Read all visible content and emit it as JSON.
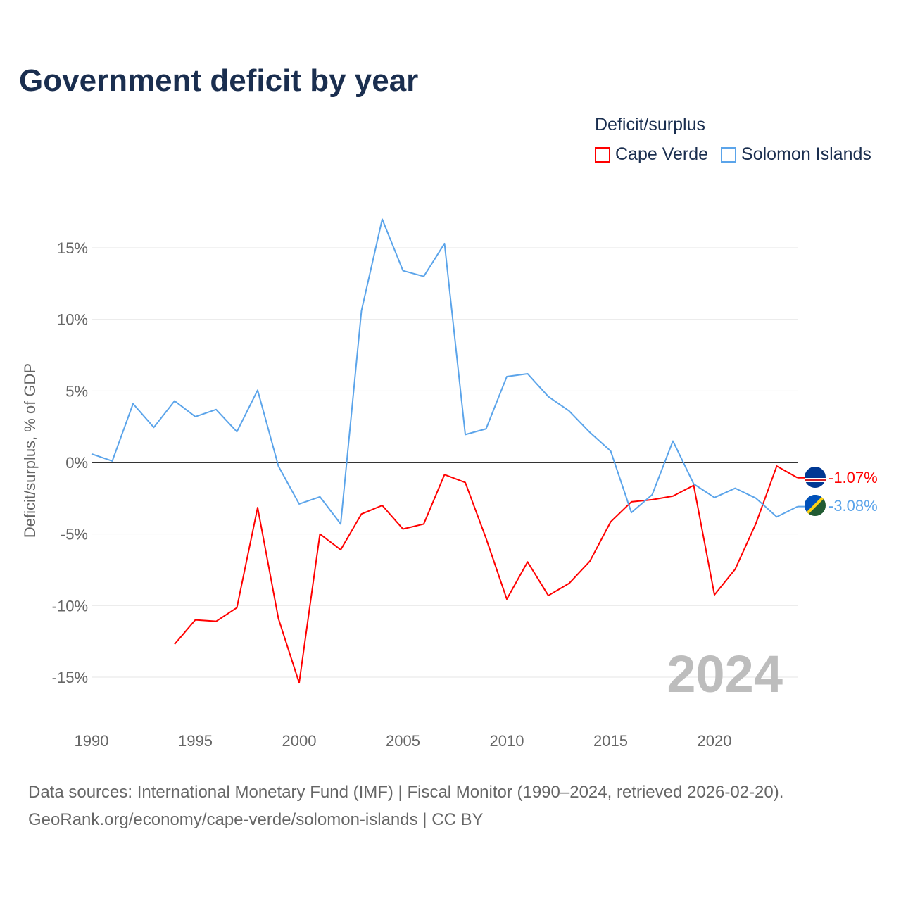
{
  "title": "Government deficit by year",
  "legend": {
    "title": "Deficit/surplus",
    "items": [
      {
        "label": "Cape Verde",
        "color": "#ff0000"
      },
      {
        "label": "Solomon Islands",
        "color": "#5ba4ea"
      }
    ]
  },
  "source": {
    "line1": "Data sources: International Monetary Fund (IMF) | Fiscal Monitor (1990–2024, retrieved 2026-02-20).",
    "line2": "GeoRank.org/economy/cape-verde/solomon-islands | CC BY"
  },
  "chart_data": {
    "type": "line",
    "title": "Government deficit by year",
    "xlabel": "",
    "ylabel": "Deficit/surplus, % of GDP",
    "xlim": [
      1990,
      2024
    ],
    "ylim": [
      -17,
      18
    ],
    "xticks": [
      1990,
      1995,
      2000,
      2005,
      2010,
      2015,
      2020
    ],
    "yticks": [
      -15,
      -10,
      -5,
      0,
      5,
      10,
      15
    ],
    "ytick_labels": [
      "-15%",
      "-10%",
      "-5%",
      "0%",
      "5%",
      "10%",
      "15%"
    ],
    "grid": true,
    "legend_position": "top-right",
    "year_watermark": "2024",
    "series": [
      {
        "name": "Cape Verde",
        "color": "#ff0000",
        "end_label": "-1.07%",
        "x": [
          1994,
          1995,
          1996,
          1997,
          1998,
          1999,
          2000,
          2001,
          2002,
          2003,
          2004,
          2005,
          2006,
          2007,
          2008,
          2009,
          2010,
          2011,
          2012,
          2013,
          2014,
          2015,
          2016,
          2017,
          2018,
          2019,
          2020,
          2021,
          2022,
          2023,
          2024
        ],
        "values": [
          -12.7,
          -11.0,
          -11.1,
          -10.15,
          -3.15,
          -10.9,
          -15.4,
          -5.0,
          -6.1,
          -3.6,
          -3.0,
          -4.65,
          -4.3,
          -0.85,
          -1.4,
          -5.3,
          -9.55,
          -6.95,
          -9.3,
          -8.45,
          -6.9,
          -4.15,
          -2.75,
          -2.6,
          -2.35,
          -1.6,
          -9.25,
          -7.45,
          -4.25,
          -0.25,
          -1.07
        ]
      },
      {
        "name": "Solomon Islands",
        "color": "#5ba4ea",
        "end_label": "-3.08%",
        "x": [
          1990,
          1991,
          1992,
          1993,
          1994,
          1995,
          1996,
          1997,
          1998,
          1999,
          2000,
          2001,
          2002,
          2003,
          2004,
          2005,
          2006,
          2007,
          2008,
          2009,
          2010,
          2011,
          2012,
          2013,
          2014,
          2015,
          2016,
          2017,
          2018,
          2019,
          2020,
          2021,
          2022,
          2023,
          2024
        ],
        "values": [
          0.6,
          0.1,
          4.1,
          2.45,
          4.3,
          3.2,
          3.7,
          2.15,
          5.05,
          -0.25,
          -2.9,
          -2.4,
          -4.3,
          10.6,
          17.0,
          13.4,
          13.0,
          15.3,
          1.95,
          2.35,
          6.0,
          6.2,
          4.6,
          3.6,
          2.1,
          0.8,
          -3.5,
          -2.25,
          1.5,
          -1.5,
          -2.45,
          -1.8,
          -2.5,
          -3.8,
          -3.08
        ]
      }
    ]
  }
}
